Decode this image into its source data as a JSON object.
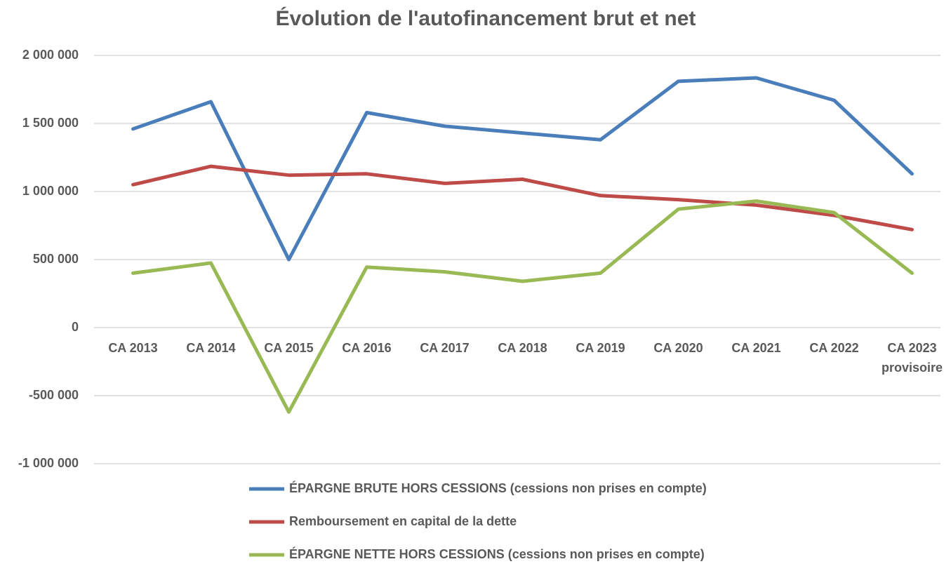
{
  "chart_data": {
    "type": "line",
    "title": "Évolution de l'autofinancement brut et net",
    "categories": [
      "CA 2013",
      "CA 2014",
      "CA 2015",
      "CA 2016",
      "CA 2017",
      "CA 2018",
      "CA 2019",
      "CA 2020",
      "CA 2021",
      "CA 2022",
      "CA 2023\nprovisoire"
    ],
    "series": [
      {
        "name": "ÉPARGNE BRUTE HORS CESSIONS (cessions non prises en compte)",
        "color": "#4a7ebb",
        "values": [
          1460000,
          1660000,
          500000,
          1580000,
          1480000,
          1430000,
          1380000,
          1810000,
          1835000,
          1670000,
          1130000
        ]
      },
      {
        "name": "Remboursement en capital de la dette",
        "color": "#be4b48",
        "values": [
          1050000,
          1185000,
          1120000,
          1130000,
          1060000,
          1090000,
          970000,
          940000,
          900000,
          825000,
          720000
        ]
      },
      {
        "name": "ÉPARGNE NETTE HORS CESSIONS (cessions non prises en compte)",
        "color": "#98b954",
        "values": [
          400000,
          475000,
          -620000,
          445000,
          410000,
          340000,
          400000,
          870000,
          930000,
          845000,
          400000
        ]
      }
    ],
    "ylim": [
      -1000000,
      2000000
    ],
    "yticks": [
      {
        "value": -1000000,
        "label": "-1 000 000"
      },
      {
        "value": -500000,
        "label": "-500 000"
      },
      0,
      {
        "value": 500000,
        "label": "500 000"
      },
      {
        "value": 1000000,
        "label": "1 000 000"
      },
      {
        "value": 1500000,
        "label": "1 500 000"
      },
      {
        "value": 2000000,
        "label": "2 000 000"
      }
    ],
    "grid": true,
    "legend": "bottom"
  }
}
